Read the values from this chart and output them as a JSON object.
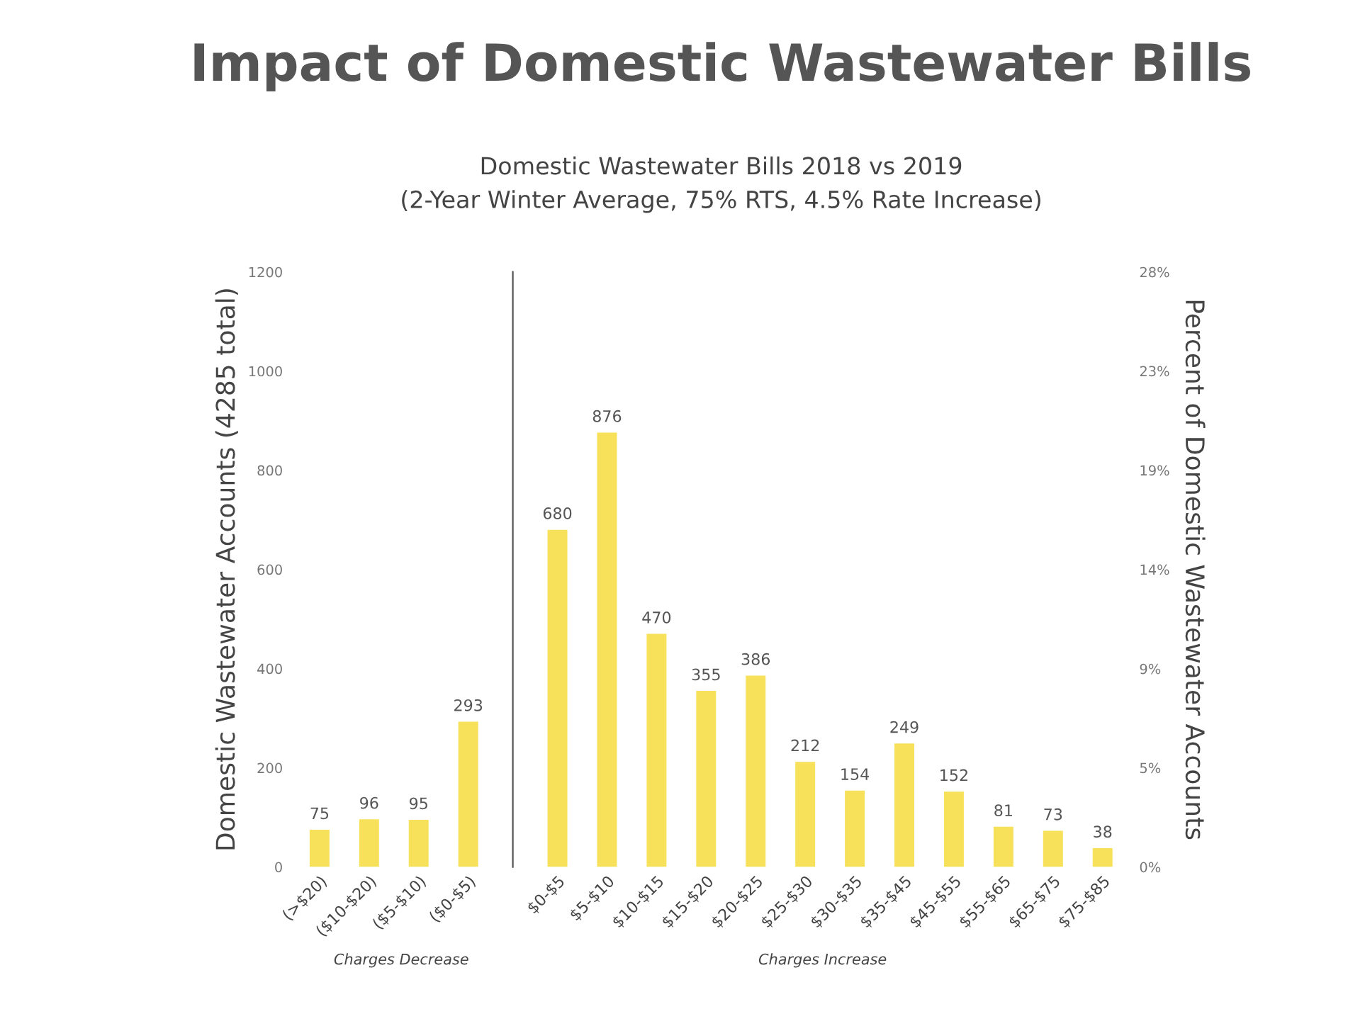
{
  "chart_data": [
    {
      "type": "bar",
      "title": "Impact of Domestic Wastewater Bills",
      "subtitle": "Domestic Wastewater Bills 2018 vs 2019\n(2-Year Winter Average, 75% RTS, 4.5% Rate Increase)",
      "ylabel": "Domestic Wastewater Accounts (4285 total)",
      "xlabel": "Charges Decrease",
      "categories": [
        "(>$20)",
        "($10-$20)",
        "($5-$10)",
        "($0-$5)"
      ],
      "values": [
        75,
        96,
        95,
        293
      ],
      "color": "#f7e15a",
      "data_labels": true,
      "ylim": [
        0,
        1200
      ],
      "yticks": [
        0,
        200,
        400,
        600,
        800,
        1000,
        1200
      ]
    },
    {
      "type": "bar",
      "xlabel": "Charges Increase",
      "y2label": "Percent of Domestic Wastewater Accounts",
      "categories": [
        "$0-$5",
        "$5-$10",
        "$10-$15",
        "$15-$20",
        "$20-$25",
        "$25-$30",
        "$30-$35",
        "$35-$45",
        "$45-$55",
        "$55-$65",
        "$65-$75",
        "$75-$85"
      ],
      "values": [
        680,
        876,
        470,
        355,
        386,
        212,
        154,
        249,
        152,
        81,
        73,
        38
      ],
      "color": "#f7e15a",
      "data_labels": true,
      "ylim": [
        0,
        1200
      ],
      "y2lim": [
        0,
        28.0
      ],
      "y2ticks": [
        {
          "value": 0,
          "label": "0%"
        },
        {
          "value": 4.67,
          "label": "5%"
        },
        {
          "value": 9.33,
          "label": "9%"
        },
        {
          "value": 14.0,
          "label": "14%"
        },
        {
          "value": 18.67,
          "label": "19%"
        },
        {
          "value": 23.34,
          "label": "23%"
        },
        {
          "value": 28.0,
          "label": "28%"
        }
      ]
    }
  ]
}
